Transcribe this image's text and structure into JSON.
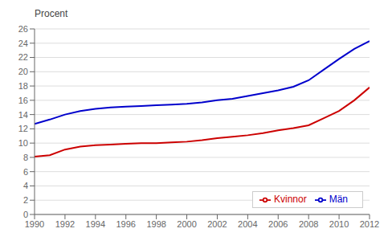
{
  "chart_data": {
    "type": "line",
    "ylabel": "Procent",
    "x": [
      1990,
      1991,
      1992,
      1993,
      1994,
      1995,
      1996,
      1997,
      1998,
      1999,
      2000,
      2001,
      2002,
      2003,
      2004,
      2005,
      2006,
      2007,
      2008,
      2009,
      2010,
      2011,
      2012
    ],
    "series": [
      {
        "name": "Män",
        "color": "#0000CC",
        "values": [
          12.7,
          13.3,
          14.0,
          14.5,
          14.8,
          15.0,
          15.1,
          15.2,
          15.3,
          15.4,
          15.5,
          15.7,
          16.0,
          16.2,
          16.6,
          17.0,
          17.4,
          17.9,
          18.8,
          20.3,
          21.8,
          23.2,
          24.3
        ]
      },
      {
        "name": "Kvinnor",
        "color": "#CC0000",
        "values": [
          8.1,
          8.3,
          9.1,
          9.5,
          9.7,
          9.8,
          9.9,
          10.0,
          10.0,
          10.1,
          10.2,
          10.4,
          10.7,
          10.9,
          11.1,
          11.4,
          11.8,
          12.1,
          12.5,
          13.5,
          14.5,
          16.0,
          17.8
        ]
      }
    ],
    "xlim": [
      1990,
      2012
    ],
    "xticks": [
      1990,
      1992,
      1994,
      1996,
      1998,
      2000,
      2002,
      2004,
      2006,
      2008,
      2010,
      2012
    ],
    "ylim": [
      0,
      26
    ],
    "yticks": [
      0,
      2,
      4,
      6,
      8,
      10,
      12,
      14,
      16,
      18,
      20,
      22,
      24,
      26
    ],
    "grid": "y",
    "legend": "lower right"
  }
}
